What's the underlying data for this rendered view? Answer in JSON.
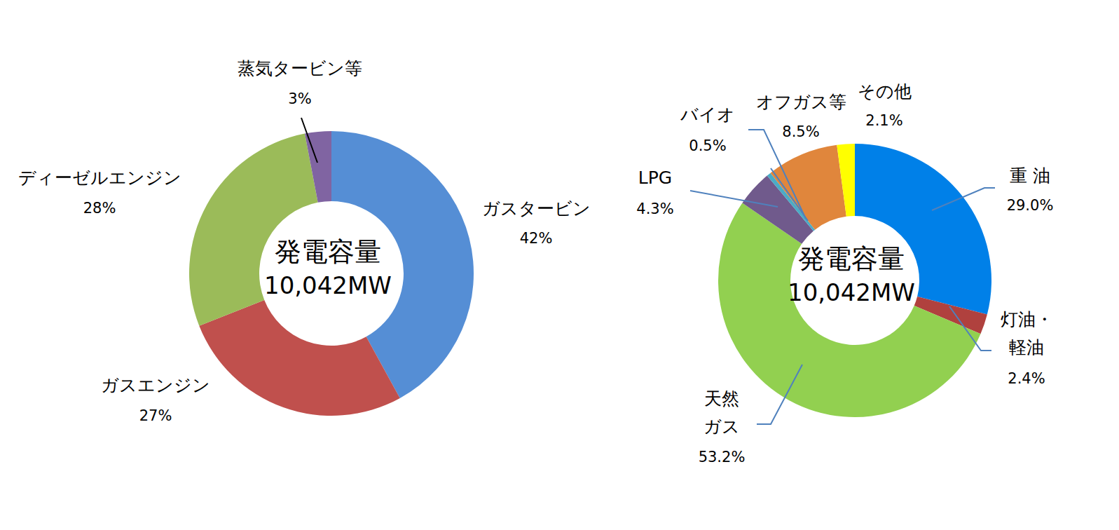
{
  "chart_data": [
    {
      "type": "pie",
      "title": "発電容量",
      "subtitle": "10,042MW",
      "categories": [
        "ガスタービン",
        "ガスエンジン",
        "ディーゼルエンジン",
        "蒸気タービン等"
      ],
      "values": [
        42,
        27,
        28,
        3
      ],
      "value_labels": [
        "42%",
        "27%",
        "28%",
        "3%"
      ],
      "colors": [
        "#558ed5",
        "#c0504d",
        "#9bbb59",
        "#8064a2"
      ],
      "data_labels": true
    },
    {
      "type": "pie",
      "title": "発電容量",
      "subtitle": "10,042MW",
      "categories": [
        "重 油",
        "灯油・\n軽油",
        "天然\nガス",
        "LPG",
        "バイオ",
        "オフガス等",
        "その他"
      ],
      "values": [
        29.0,
        2.4,
        53.2,
        4.3,
        0.5,
        8.5,
        2.1
      ],
      "value_labels": [
        "29.0%",
        "2.4%",
        "53.2%",
        "4.3%",
        "0.5%",
        "8.5%",
        "2.1%"
      ],
      "colors": [
        "#0080e8",
        "#b0413e",
        "#92d050",
        "#705a8c",
        "#4bacc6",
        "#e0863c",
        "#ffff00"
      ],
      "data_labels": true
    }
  ]
}
